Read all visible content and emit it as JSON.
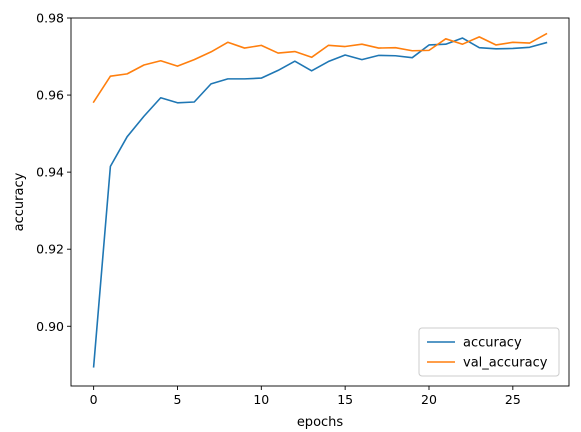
{
  "chart_data": {
    "type": "line",
    "title": "",
    "xlabel": "epochs",
    "ylabel": "accuracy",
    "xlim": [
      -1.35,
      28.35
    ],
    "ylim": [
      0.8845,
      0.98
    ],
    "xticks": [
      0,
      5,
      10,
      15,
      20,
      25
    ],
    "yticks": [
      0.9,
      0.92,
      0.94,
      0.96,
      0.98
    ],
    "ytick_labels": [
      "0.90",
      "0.92",
      "0.94",
      "0.96",
      "0.98"
    ],
    "grid": false,
    "legend_position": "lower-right",
    "x": [
      0,
      1,
      2,
      3,
      4,
      5,
      6,
      7,
      8,
      9,
      10,
      11,
      12,
      13,
      14,
      15,
      16,
      17,
      18,
      19,
      20,
      21,
      22,
      23,
      24,
      25,
      26,
      27
    ],
    "series": [
      {
        "name": "accuracy",
        "color": "#1f77b4",
        "values": [
          0.8895,
          0.9415,
          0.9492,
          0.9545,
          0.9593,
          0.958,
          0.9582,
          0.9629,
          0.9642,
          0.9642,
          0.9644,
          0.9664,
          0.9688,
          0.9663,
          0.9687,
          0.9704,
          0.9692,
          0.9703,
          0.9702,
          0.9697,
          0.973,
          0.9732,
          0.9748,
          0.9723,
          0.972,
          0.9721,
          0.9724,
          0.9736
        ]
      },
      {
        "name": "val_accuracy",
        "color": "#ff7f0e",
        "values": [
          0.9582,
          0.9649,
          0.9655,
          0.9678,
          0.9689,
          0.9675,
          0.9692,
          0.9712,
          0.9737,
          0.9722,
          0.9729,
          0.9709,
          0.9713,
          0.9698,
          0.9729,
          0.9726,
          0.9732,
          0.9722,
          0.9723,
          0.9715,
          0.9716,
          0.9746,
          0.9732,
          0.9751,
          0.973,
          0.9737,
          0.9735,
          0.9759
        ]
      }
    ]
  }
}
